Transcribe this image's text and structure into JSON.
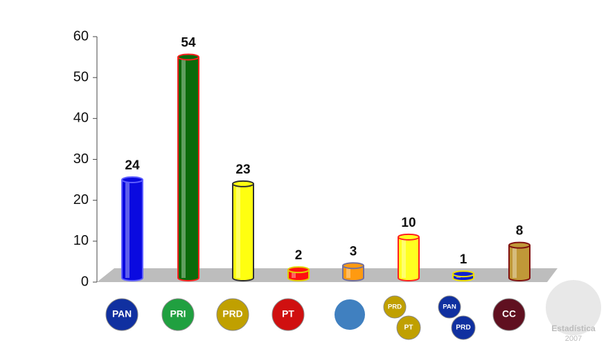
{
  "chart_data": {
    "type": "bar",
    "categories": [
      null,
      null,
      null,
      null,
      null,
      null,
      null,
      null
    ],
    "logo_labels": [
      [
        "PAN"
      ],
      [
        "PRI"
      ],
      [
        "PRD"
      ],
      [
        "PT"
      ],
      null,
      [
        "PRD",
        "PT"
      ],
      [
        "PAN",
        "PRD"
      ],
      [
        "CC"
      ]
    ],
    "values": [
      24,
      54,
      23,
      2,
      3,
      10,
      1,
      8
    ],
    "colors": [
      "#0a0ae0",
      "#0a6a0a",
      "#ffff10",
      "#ff1010",
      "#ff9a10",
      "#ffff20",
      "#1020d0",
      "#c09838"
    ],
    "edge_colors": [
      "#6060ff",
      "#ff2020",
      "#303030",
      "#e0d000",
      "#7070a0",
      "#ff2020",
      "#f0e000",
      "#801010"
    ],
    "logo_colors": [
      "#1030a0",
      "#20a040",
      "#c0a000",
      "#d01010",
      "#4080c0",
      "#c0a000",
      "#1030a0",
      "#601020"
    ],
    "ylim": [
      0,
      60
    ],
    "yticks": [
      0,
      10,
      20,
      30,
      40,
      50,
      60
    ],
    "watermark": [
      "Estadística",
      "2007"
    ]
  }
}
